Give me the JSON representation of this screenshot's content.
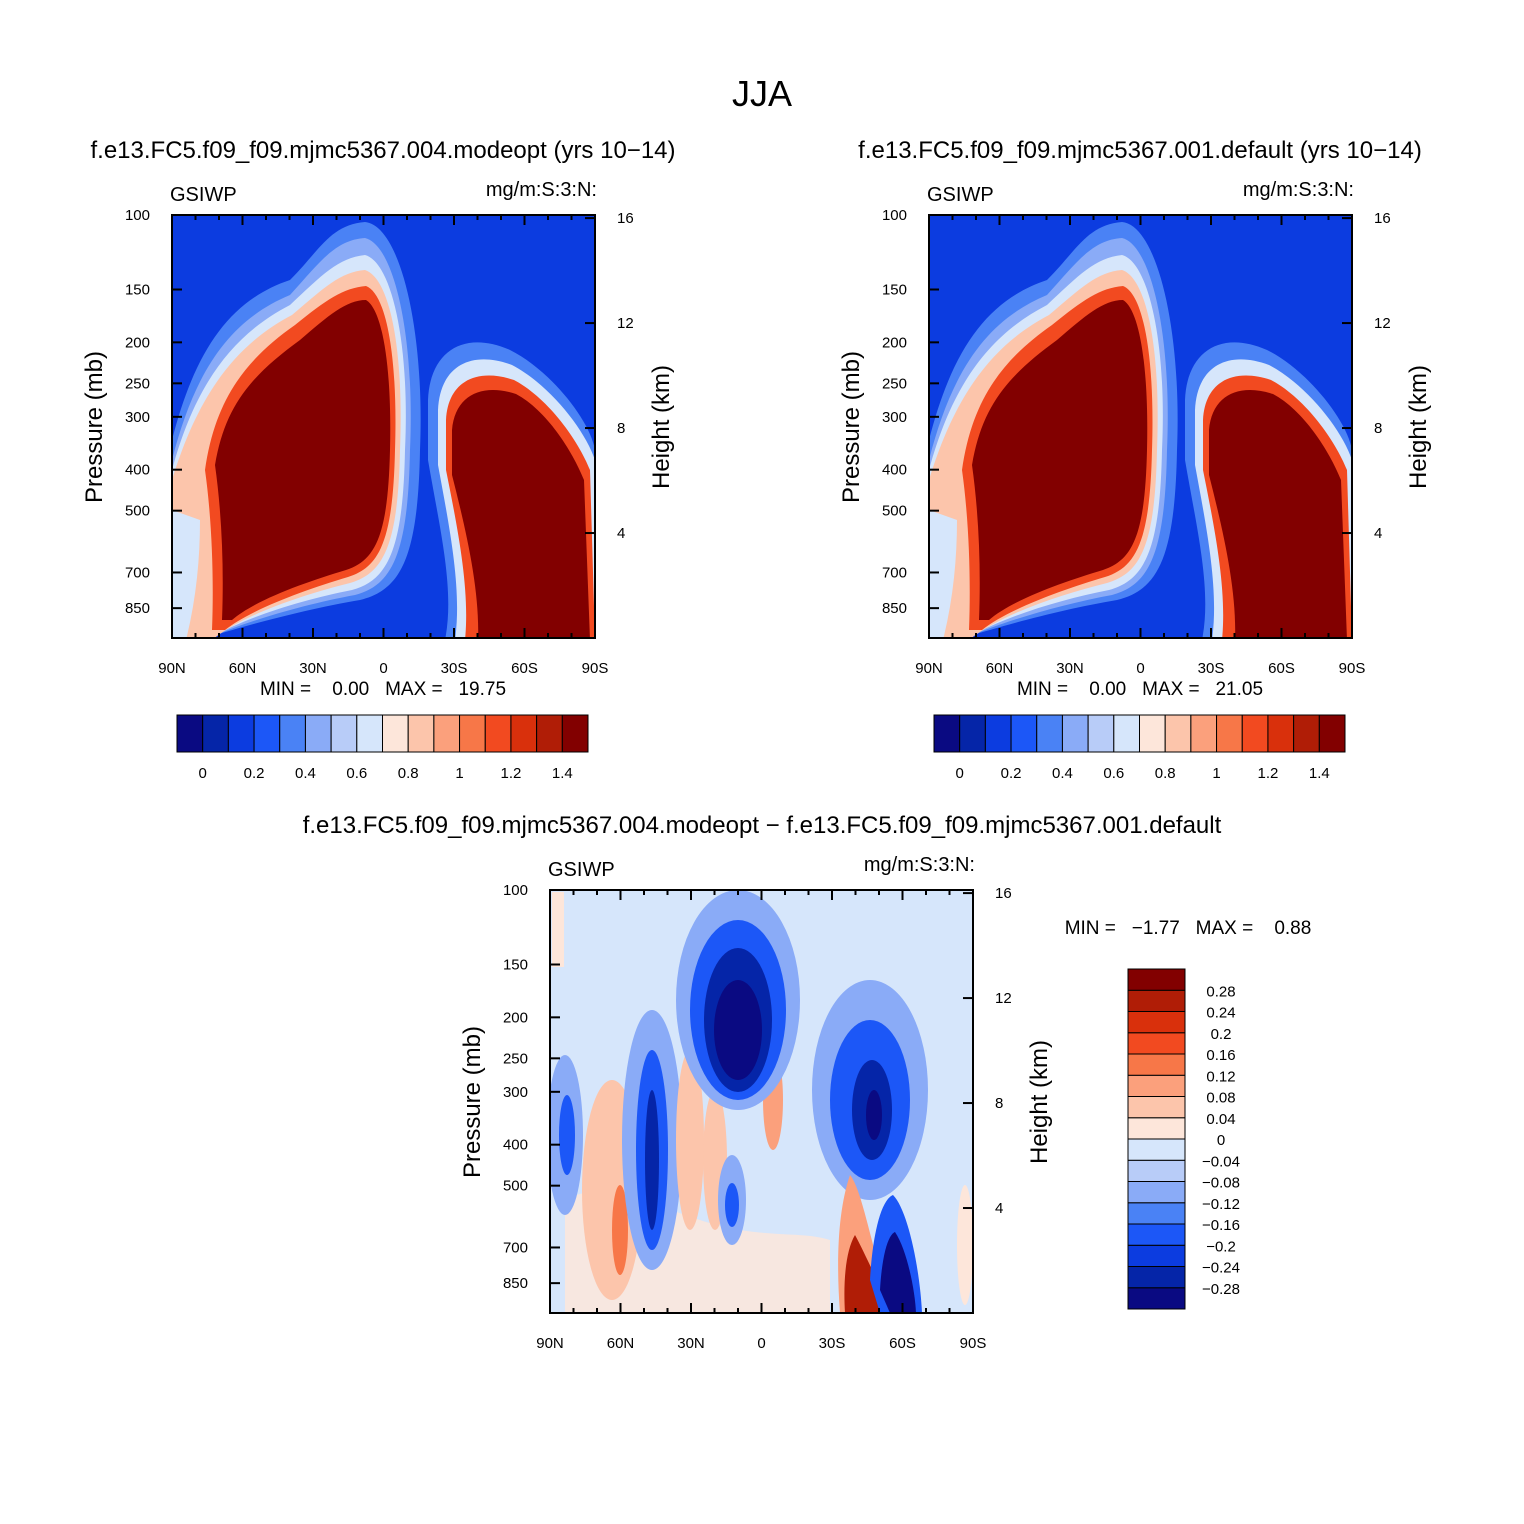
{
  "figure_title": "JJA",
  "panels": [
    {
      "id": "panel-1",
      "case_title": "f.e13.FC5.f09_f09.mjmc5367.004.modeopt (yrs 10−14)",
      "left_label": "GSIWP",
      "right_label": "mg/m:S:3:N:",
      "stats": "MIN =    0.00   MAX =   19.75"
    },
    {
      "id": "panel-2",
      "case_title": "f.e13.FC5.f09_f09.mjmc5367.001.default (yrs 10−14)",
      "left_label": "GSIWP",
      "right_label": "mg/m:S:3:N:",
      "stats": "MIN =    0.00   MAX =   21.05"
    },
    {
      "id": "panel-3",
      "case_title": "f.e13.FC5.f09_f09.mjmc5367.004.modeopt − f.e13.FC5.f09_f09.mjmc5367.001.default",
      "left_label": "GSIWP",
      "right_label": "mg/m:S:3:N:",
      "stats": "MIN =   −1.77   MAX =    0.88"
    }
  ],
  "axes": {
    "ylabel": "Pressure (mb)",
    "y2label": "Height (km)"
  },
  "chart_data": [
    {
      "type": "heatmap",
      "title": "f.e13.FC5.f09_f09.mjmc5367.004.modeopt (yrs 10−14)",
      "variable": "GSIWP",
      "units": "mg/m:S:3:N:",
      "xlabel": "",
      "ylabel": "Pressure (mb)",
      "y2label": "Height (km)",
      "x_ticks": [
        "90N",
        "60N",
        "30N",
        "0",
        "30S",
        "60S",
        "90S"
      ],
      "x_tick_values": [
        90,
        60,
        30,
        0,
        -30,
        -60,
        -90
      ],
      "y_ticks": [
        "100",
        "150",
        "200",
        "250",
        "300",
        "400",
        "500",
        "700",
        "850"
      ],
      "y_tick_values": [
        100,
        150,
        200,
        250,
        300,
        400,
        500,
        700,
        850
      ],
      "y2_ticks": [
        "4",
        "8",
        "12",
        "16"
      ],
      "y2_tick_values": [
        4,
        8,
        12,
        16
      ],
      "ylim": [
        100,
        1000
      ],
      "xlim": [
        90,
        -90
      ],
      "min": 0.0,
      "max": 19.75,
      "contour_levels": [
        0,
        0.1,
        0.2,
        0.3,
        0.4,
        0.5,
        0.6,
        0.7,
        0.8,
        0.9,
        1.0,
        1.1,
        1.2,
        1.3,
        1.4
      ],
      "colorbar_labels": [
        "0",
        "0.2",
        "0.4",
        "0.6",
        "0.8",
        "1",
        "1.2",
        "1.4"
      ]
    },
    {
      "type": "heatmap",
      "title": "f.e13.FC5.f09_f09.mjmc5367.001.default (yrs 10−14)",
      "variable": "GSIWP",
      "units": "mg/m:S:3:N:",
      "xlabel": "",
      "ylabel": "Pressure (mb)",
      "y2label": "Height (km)",
      "x_ticks": [
        "90N",
        "60N",
        "30N",
        "0",
        "30S",
        "60S",
        "90S"
      ],
      "x_tick_values": [
        90,
        60,
        30,
        0,
        -30,
        -60,
        -90
      ],
      "y_ticks": [
        "100",
        "150",
        "200",
        "250",
        "300",
        "400",
        "500",
        "700",
        "850"
      ],
      "y_tick_values": [
        100,
        150,
        200,
        250,
        300,
        400,
        500,
        700,
        850
      ],
      "y2_ticks": [
        "4",
        "8",
        "12",
        "16"
      ],
      "y2_tick_values": [
        4,
        8,
        12,
        16
      ],
      "ylim": [
        100,
        1000
      ],
      "xlim": [
        90,
        -90
      ],
      "min": 0.0,
      "max": 21.05,
      "contour_levels": [
        0,
        0.1,
        0.2,
        0.3,
        0.4,
        0.5,
        0.6,
        0.7,
        0.8,
        0.9,
        1.0,
        1.1,
        1.2,
        1.3,
        1.4
      ],
      "colorbar_labels": [
        "0",
        "0.2",
        "0.4",
        "0.6",
        "0.8",
        "1",
        "1.2",
        "1.4"
      ]
    },
    {
      "type": "heatmap",
      "title": "f.e13.FC5.f09_f09.mjmc5367.004.modeopt − f.e13.FC5.f09_f09.mjmc5367.001.default",
      "variable": "GSIWP",
      "units": "mg/m:S:3:N:",
      "xlabel": "",
      "ylabel": "Pressure (mb)",
      "y2label": "Height (km)",
      "x_ticks": [
        "90N",
        "60N",
        "30N",
        "0",
        "30S",
        "60S",
        "90S"
      ],
      "x_tick_values": [
        90,
        60,
        30,
        0,
        -30,
        -60,
        -90
      ],
      "y_ticks": [
        "100",
        "150",
        "200",
        "250",
        "300",
        "400",
        "500",
        "700",
        "850"
      ],
      "y_tick_values": [
        100,
        150,
        200,
        250,
        300,
        400,
        500,
        700,
        850
      ],
      "y2_ticks": [
        "4",
        "8",
        "12",
        "16"
      ],
      "y2_tick_values": [
        4,
        8,
        12,
        16
      ],
      "ylim": [
        100,
        1000
      ],
      "xlim": [
        90,
        -90
      ],
      "min": -1.77,
      "max": 0.88,
      "contour_levels": [
        -0.28,
        -0.24,
        -0.2,
        -0.16,
        -0.12,
        -0.08,
        -0.04,
        0,
        0.04,
        0.08,
        0.12,
        0.16,
        0.2,
        0.24,
        0.28
      ],
      "colorbar_labels": [
        "0.28",
        "0.24",
        "0.2",
        "0.16",
        "0.12",
        "0.08",
        "0.04",
        "0",
        "−0.04",
        "−0.08",
        "−0.12",
        "−0.16",
        "−0.2",
        "−0.24",
        "−0.28"
      ]
    }
  ],
  "palette": [
    "#0a0a82",
    "#0525a8",
    "#0c3ce0",
    "#1c57f7",
    "#4a82f5",
    "#8aabf7",
    "#b8ccf8",
    "#d6e6fb",
    "#fde6da",
    "#fcc5ab",
    "#fba07c",
    "#f77748",
    "#f24a20",
    "#d9300c",
    "#b01d06",
    "#820000"
  ]
}
